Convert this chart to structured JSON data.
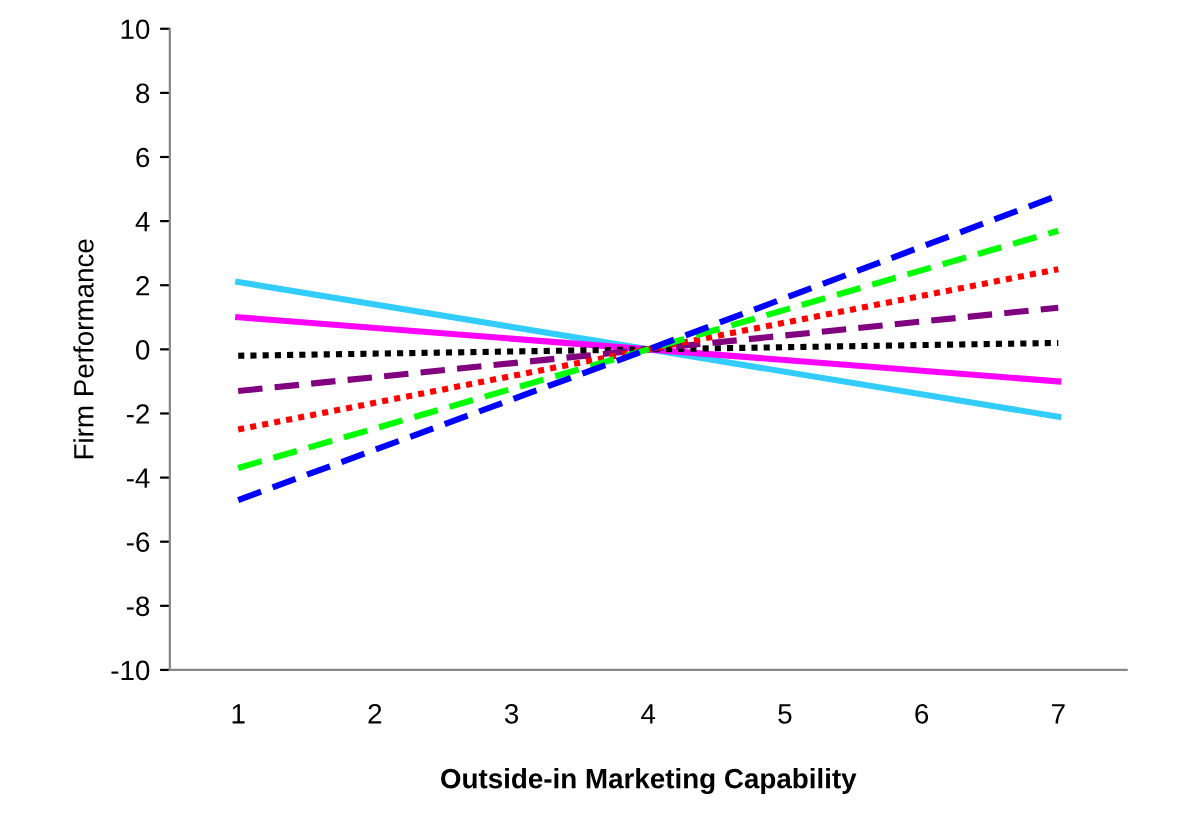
{
  "chart_data": {
    "type": "line",
    "xlabel": "Outside-in Marketing Capability",
    "ylabel": "Firm Performance",
    "x": [
      1,
      4,
      7
    ],
    "xlim": [
      0.5,
      7.5
    ],
    "xticks": [
      1,
      2,
      3,
      4,
      5,
      6,
      7
    ],
    "ylim": [
      -10,
      10
    ],
    "yticks": [
      -10,
      -8,
      -6,
      -4,
      -2,
      0,
      2,
      4,
      6,
      8,
      10
    ],
    "grid": false,
    "marker": "none",
    "series": [
      {
        "color": "#33ccff",
        "line_style": "solid",
        "values": [
          2.1,
          0,
          -2.1
        ]
      },
      {
        "color": "#ff00ff",
        "line_style": "solid",
        "values": [
          1.0,
          0,
          -1.0
        ]
      },
      {
        "color": "#000000",
        "line_style": "dotted",
        "values": [
          -0.2,
          0,
          0.2
        ]
      },
      {
        "color": "#800080",
        "line_style": "dashed",
        "values": [
          -1.3,
          0,
          1.3
        ]
      },
      {
        "color": "#ff0000",
        "line_style": "dotted",
        "values": [
          -2.5,
          0,
          2.5
        ]
      },
      {
        "color": "#00ff00",
        "line_style": "dashed",
        "values": [
          -3.7,
          0,
          3.7
        ]
      },
      {
        "color": "#0000ff",
        "line_style": "dashed",
        "values": [
          -4.7,
          0,
          4.8
        ]
      }
    ]
  }
}
